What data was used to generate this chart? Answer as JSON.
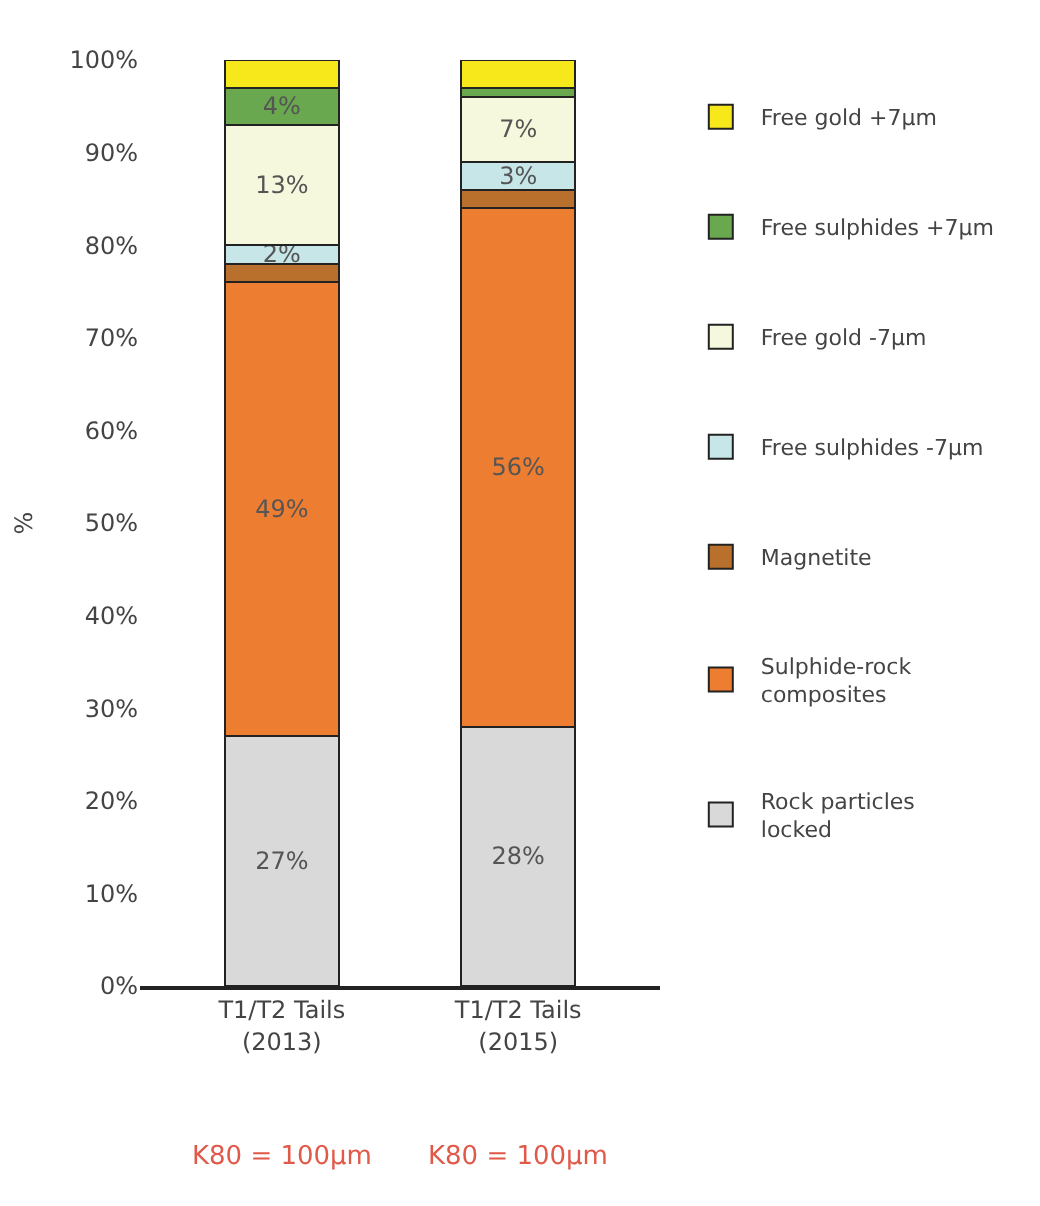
{
  "chart_data": {
    "type": "bar",
    "stacked": true,
    "ylabel": "%",
    "categories": [
      "T1/T2 Tails (2013)",
      "T1/T2 Tails (2015)"
    ],
    "series": [
      {
        "name": "Rock particles locked",
        "color": "#d9d9d9",
        "values": [
          27,
          28
        ],
        "value_labels": [
          "27%",
          "28%"
        ]
      },
      {
        "name": "Sulphide-rock composites",
        "color": "#ed7d31",
        "values": [
          49,
          56
        ],
        "value_labels": [
          "49%",
          "56%"
        ]
      },
      {
        "name": "Magnetite",
        "color": "#b8702c",
        "values": [
          2,
          2
        ],
        "value_labels": [
          null,
          null
        ]
      },
      {
        "name": "Free sulphides -7µm",
        "color": "#c6e6e8",
        "values": [
          2,
          3
        ],
        "value_labels": [
          "2%",
          "3%"
        ]
      },
      {
        "name": "Free gold -7µm",
        "color": "#f5f8dc",
        "values": [
          13,
          7
        ],
        "value_labels": [
          "13%",
          "7%"
        ]
      },
      {
        "name": "Free sulphides +7µm",
        "color": "#6aa84f",
        "values": [
          4,
          1
        ],
        "value_labels": [
          "4%",
          null
        ]
      },
      {
        "name": "Free gold +7µm",
        "color": "#f7e81c",
        "values": [
          3,
          3
        ],
        "value_labels": [
          null,
          null
        ]
      }
    ],
    "ylim": [
      0,
      100
    ],
    "yticks": [
      {
        "value": 0,
        "label": "0%"
      },
      {
        "value": 10,
        "label": "10%"
      },
      {
        "value": 20,
        "label": "20%"
      },
      {
        "value": 30,
        "label": "30%"
      },
      {
        "value": 40,
        "label": "40%"
      },
      {
        "value": 50,
        "label": "50%"
      },
      {
        "value": 60,
        "label": "60%"
      },
      {
        "value": 70,
        "label": "70%"
      },
      {
        "value": 80,
        "label": "80%"
      },
      {
        "value": 90,
        "label": "90%"
      },
      {
        "value": 100,
        "label": "100%"
      }
    ],
    "legend": "right",
    "annotations": [
      "K80 = 100µm",
      "K80 = 100µm"
    ]
  }
}
